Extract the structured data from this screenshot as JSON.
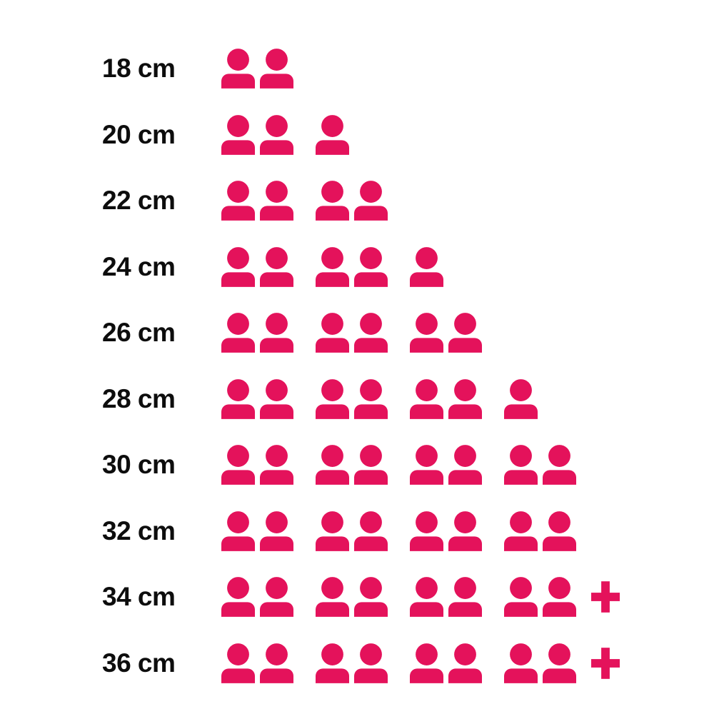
{
  "page": {
    "background_color": "#ffffff",
    "text_color": "#0d0d0d"
  },
  "chart_data": {
    "type": "pictogram",
    "title": "",
    "xlabel": "",
    "ylabel": "",
    "unit_icon": "person-icon",
    "overflow_icon": "plus-icon",
    "icon_color": "#E4125B",
    "label_color": "#0d0d0d",
    "icons_per_group": 2,
    "legend": null,
    "grid": false,
    "categories": [
      "18 cm",
      "20 cm",
      "22 cm",
      "24 cm",
      "26 cm",
      "28 cm",
      "30 cm",
      "32 cm",
      "34 cm",
      "36 cm"
    ],
    "values": [
      2,
      3,
      4,
      5,
      6,
      7,
      8,
      8,
      8,
      8
    ],
    "rows": [
      {
        "label": "18 cm",
        "count": 2,
        "plus": false
      },
      {
        "label": "20 cm",
        "count": 3,
        "plus": false
      },
      {
        "label": "22 cm",
        "count": 4,
        "plus": false
      },
      {
        "label": "24 cm",
        "count": 5,
        "plus": false
      },
      {
        "label": "26 cm",
        "count": 6,
        "plus": false
      },
      {
        "label": "28 cm",
        "count": 7,
        "plus": false
      },
      {
        "label": "30 cm",
        "count": 8,
        "plus": false
      },
      {
        "label": "32 cm",
        "count": 8,
        "plus": false
      },
      {
        "label": "34 cm",
        "count": 8,
        "plus": true
      },
      {
        "label": "36 cm",
        "count": 8,
        "plus": true
      }
    ]
  }
}
